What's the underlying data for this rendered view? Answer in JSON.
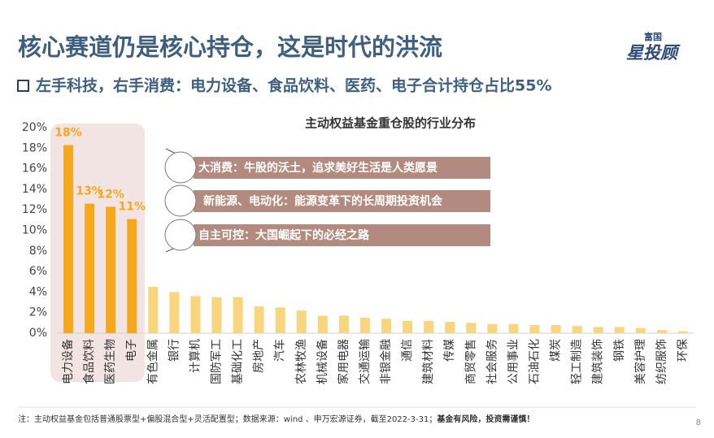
{
  "title": "核心赛道仍是核心持仓，这是时代的洪流",
  "subtitle": "左手科技，右手消费：电力设备、食品饮料、医药、电子合计持仓占比55%",
  "logo": {
    "top": "富国",
    "main": "星投顾"
  },
  "callouts": [
    "大消费：牛股的沃土，追求美好生活是人类愿景",
    "新能源、电动化：能源变革下的长周期投资机会",
    "自主可控：大国崛起下的必经之路"
  ],
  "footnote": {
    "text": "注：主动权益基金包括普通股票型+偏股混合型+灵活配置型；数据来源：wind 、申万宏源证券，截至2022-3-31；",
    "warning": "基金有风险，投资需谨慎！"
  },
  "page_number": "8",
  "chart_data": {
    "type": "bar",
    "title": "主动权益基金重仓股的行业分布",
    "categories": [
      "电力设备",
      "食品饮料",
      "医药生物",
      "电子",
      "有色金属",
      "银行",
      "计算机",
      "国防军工",
      "基础化工",
      "房地产",
      "汽车",
      "农林牧渔",
      "机械设备",
      "家用电器",
      "交通运输",
      "非银金融",
      "通信",
      "建筑材料",
      "传媒",
      "商贸零售",
      "社会服务",
      "公用事业",
      "石油石化",
      "煤炭",
      "轻工制造",
      "建筑装饰",
      "钢铁",
      "美容护理",
      "纺织服饰",
      "环保"
    ],
    "values": [
      18.3,
      12.6,
      12.3,
      11.1,
      4.5,
      4.0,
      3.6,
      3.5,
      3.5,
      2.6,
      2.5,
      2.2,
      1.7,
      1.7,
      1.5,
      1.4,
      1.2,
      1.2,
      1.1,
      1.0,
      0.9,
      0.9,
      0.8,
      0.8,
      0.7,
      0.6,
      0.6,
      0.5,
      0.3,
      0.2
    ],
    "value_labels": [
      "18%",
      "13%",
      "12%",
      "11%",
      null,
      null,
      null,
      null,
      null,
      null,
      null,
      null,
      null,
      null,
      null,
      null,
      null,
      null,
      null,
      null,
      null,
      null,
      null,
      null,
      null,
      null,
      null,
      null,
      null,
      null
    ],
    "colors": {
      "highlight": "#f5a81e",
      "other": "#f9d67e"
    },
    "ylim": [
      0,
      20
    ],
    "yticks": [
      {
        "value": 0,
        "label": "0%"
      },
      {
        "value": 2,
        "label": "2%"
      },
      {
        "value": 4,
        "label": "4%"
      },
      {
        "value": 6,
        "label": "6%"
      },
      {
        "value": 8,
        "label": "8%"
      },
      {
        "value": 10,
        "label": "10%"
      },
      {
        "value": 12,
        "label": "12%"
      },
      {
        "value": 14,
        "label": "14%"
      },
      {
        "value": 16,
        "label": "16%"
      },
      {
        "value": 18,
        "label": "18%"
      },
      {
        "value": 20,
        "label": "20%"
      }
    ],
    "grid": false
  }
}
